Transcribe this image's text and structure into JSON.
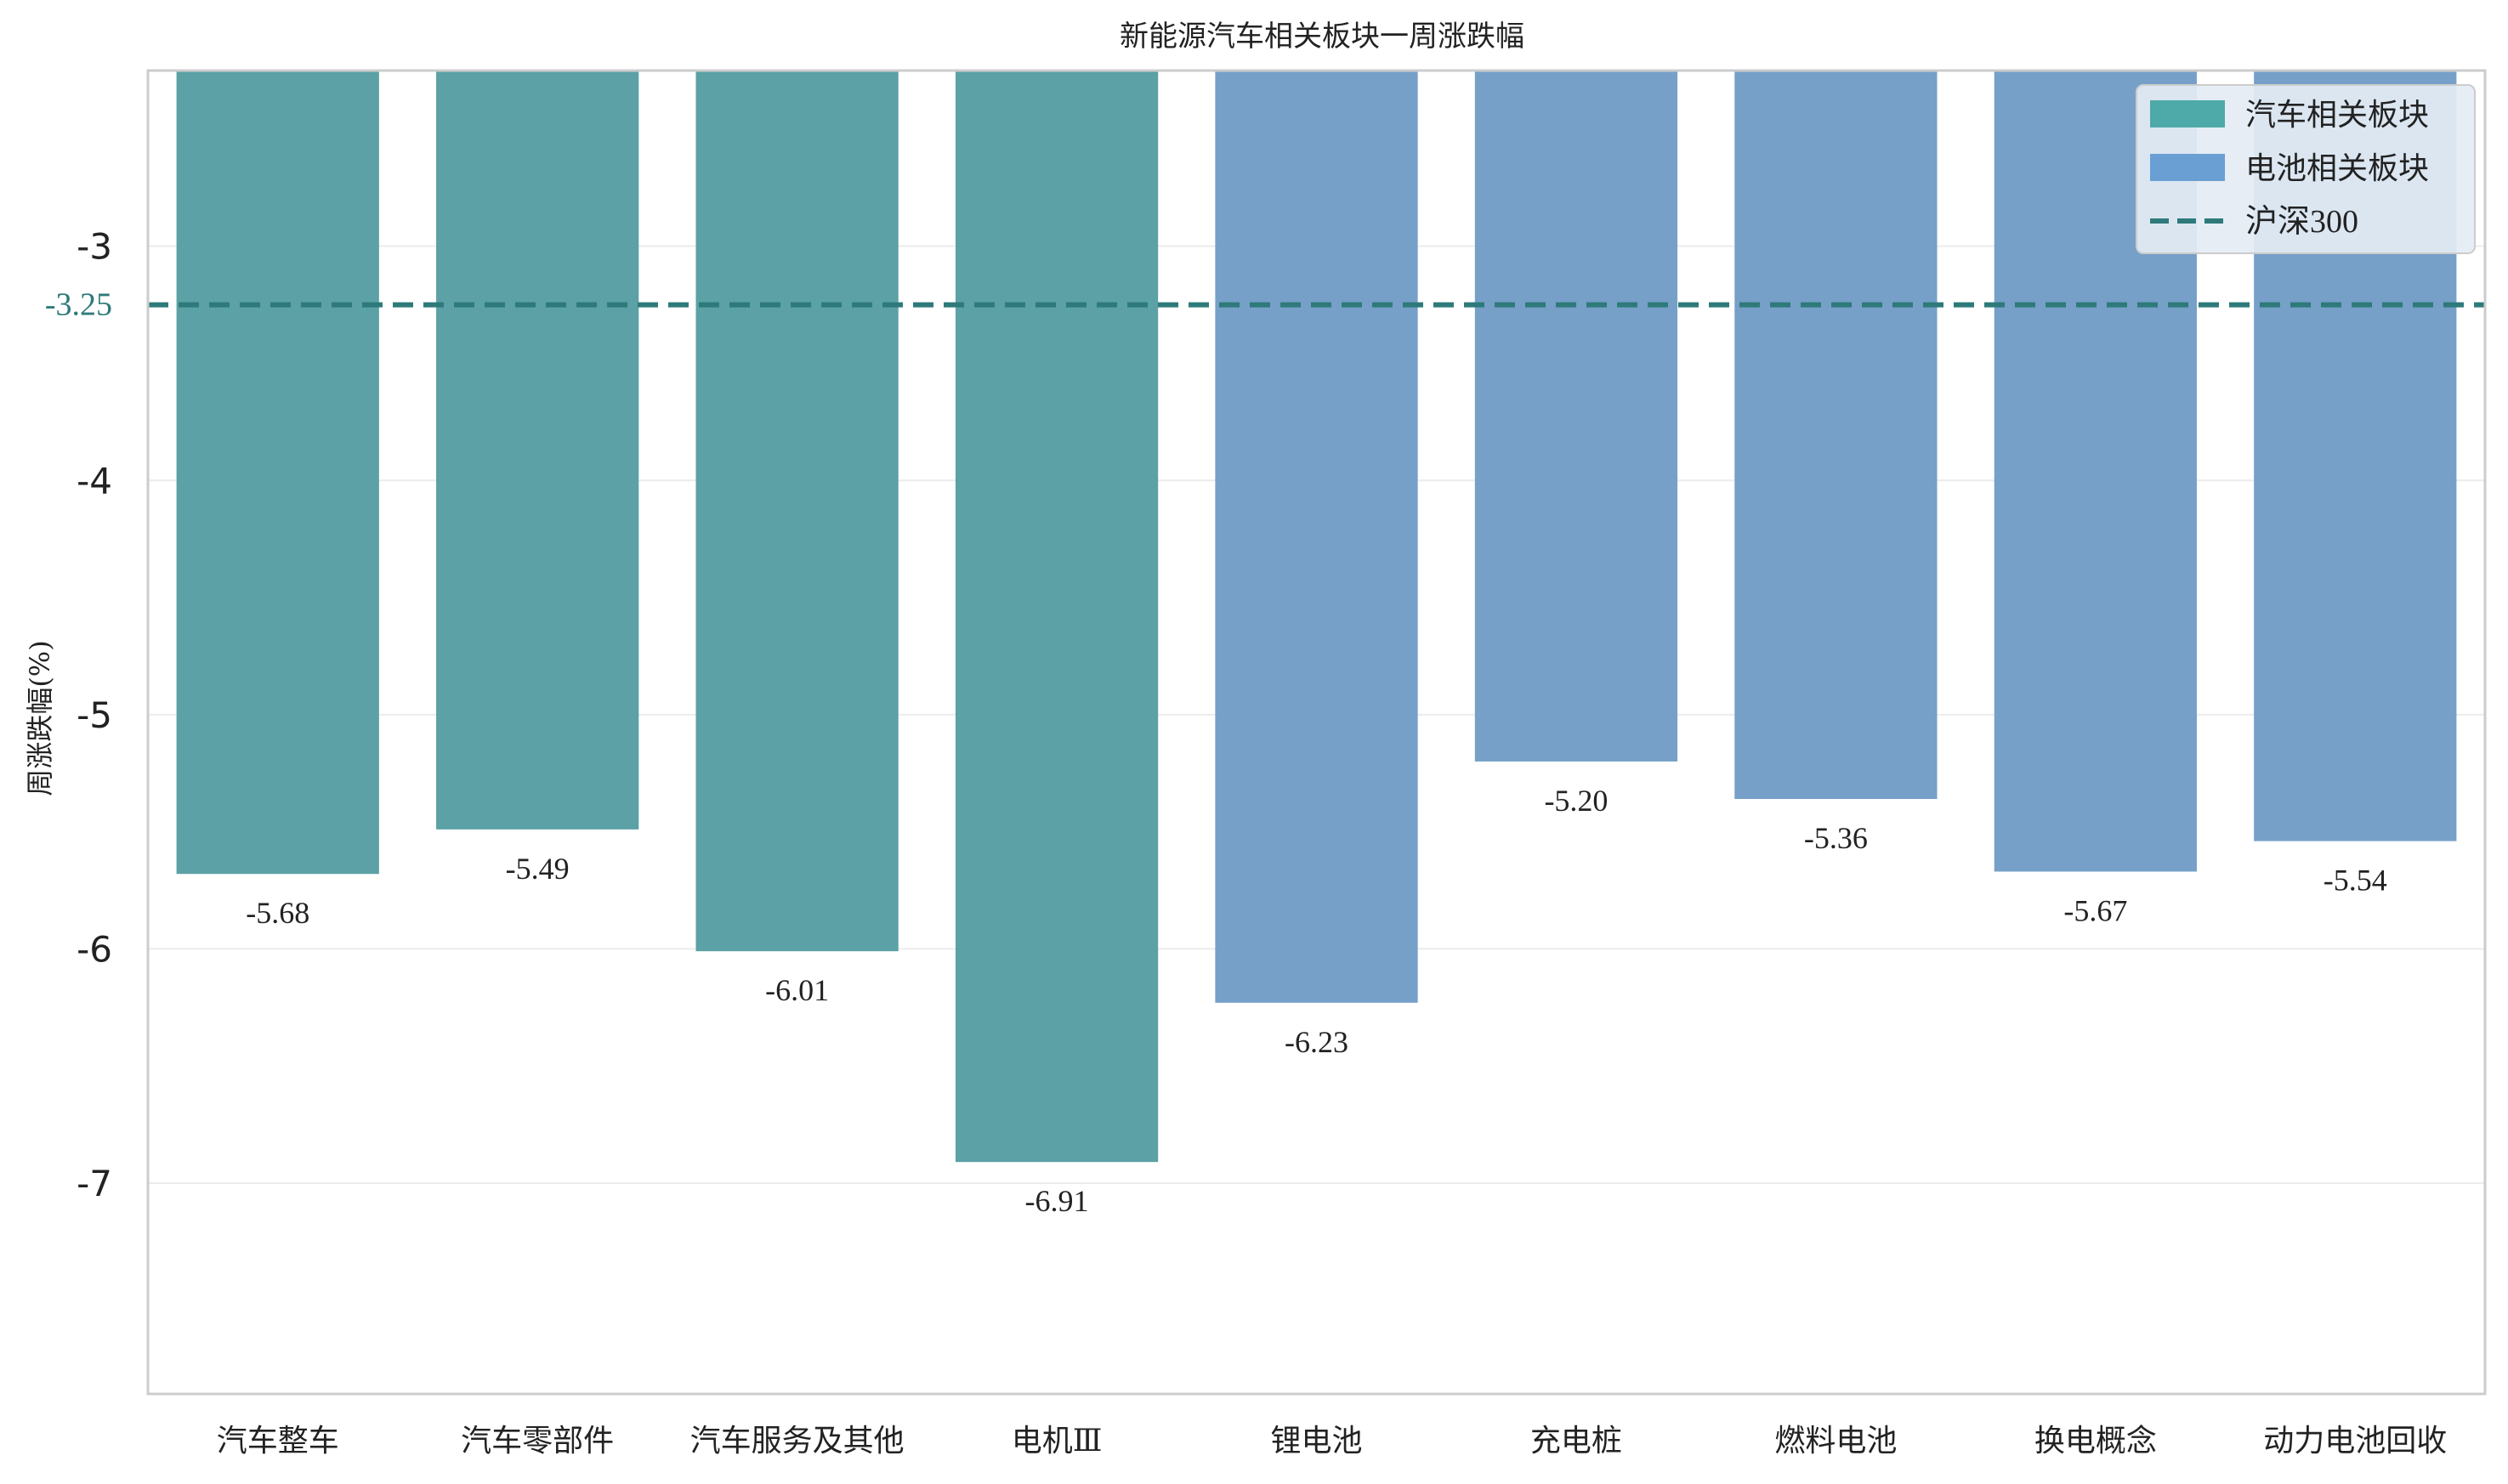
{
  "chart_data": {
    "type": "bar",
    "title": "新能源汽车相关板块一周涨跌幅",
    "ylabel": "周涨跌幅(%)",
    "xlabel": "",
    "ylim": [
      -7.9,
      -2.25
    ],
    "yticks": [
      -3,
      -4,
      -5,
      -6,
      -7
    ],
    "ytick_labels": [
      "-3",
      "-4",
      "-5",
      "-6",
      "-7"
    ],
    "grid": "horizontal",
    "categories": [
      "汽车整车",
      "汽车零部件",
      "汽车服务及其他",
      "电机Ⅲ",
      "锂电池",
      "充电桩",
      "燃料电池",
      "换电概念",
      "动力电池回收"
    ],
    "values": [
      -5.68,
      -5.49,
      -6.01,
      -6.91,
      -6.23,
      -5.2,
      -5.36,
      -5.67,
      -5.54
    ],
    "value_labels": [
      "-5.68",
      "-5.49",
      "-6.01",
      "-6.91",
      "-6.23",
      "-5.20",
      "-5.36",
      "-5.67",
      "-5.54"
    ],
    "groups": [
      "auto",
      "auto",
      "auto",
      "auto",
      "battery",
      "battery",
      "battery",
      "battery",
      "battery"
    ],
    "reference_line": {
      "name": "沪深300",
      "value": -3.25,
      "label": "-3.25",
      "color": "#2e7a7a"
    },
    "legend": {
      "placement": "top-right",
      "items": [
        {
          "name": "汽车相关板块",
          "kind": "patch",
          "color": "#4eaaa8"
        },
        {
          "name": "电池相关板块",
          "kind": "patch",
          "color": "#6a9fd4"
        },
        {
          "name": "沪深300",
          "kind": "dashed-line",
          "color": "#2e7a7a"
        }
      ]
    },
    "colors": {
      "auto": "#5ba1a5",
      "battery": "#76a0c8"
    }
  }
}
